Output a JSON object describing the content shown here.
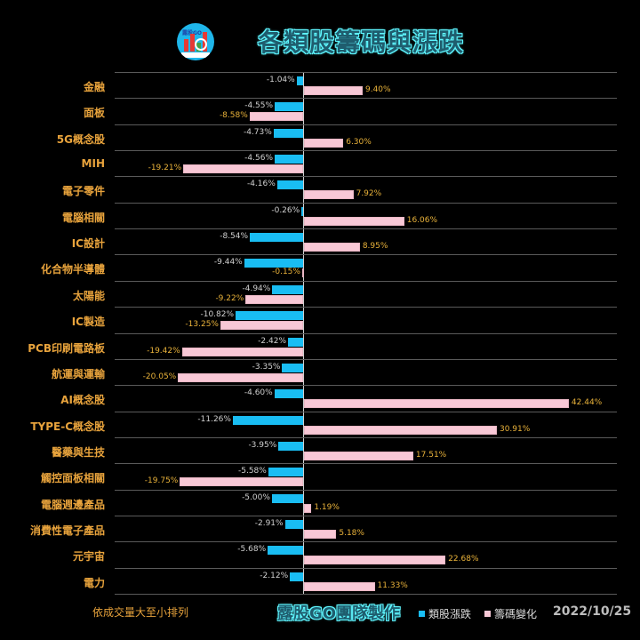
{
  "header": {
    "title": "各類股籌碼與漲跌",
    "logo_text": "露股GO",
    "logo_icon": "bar-chart-magnifier-logo"
  },
  "footer": {
    "note": "依成交量大至小排列",
    "brand": "露股GO團隊製作",
    "date": "2022/10/25"
  },
  "legend": [
    {
      "label": "類股漲跌",
      "color": "#19bdf3"
    },
    {
      "label": "籌碼變化",
      "color": "#f8c8d6"
    }
  ],
  "colors": {
    "background": "#000000",
    "price_bar": "#19bdf3",
    "chip_bar": "#f8c8d6",
    "category_label": "#e8a33c",
    "chip_value_label": "#e9b23a",
    "price_value_label": "#d0d0d0",
    "title_glow": "#5ff6ff"
  },
  "chart_data": {
    "type": "bar",
    "orientation": "horizontal",
    "title": "各類股籌碼與漲跌",
    "xlabel": "",
    "ylabel": "",
    "note": "依成交量大至小排列",
    "date": "2022/10/25",
    "legend_position": "bottom",
    "grid": true,
    "categories": [
      "金融",
      "面板",
      "5G概念股",
      "MIH",
      "電子零件",
      "電腦相關",
      "IC設計",
      "化合物半導體",
      "太陽能",
      "IC製造",
      "PCB印刷電路板",
      "航運與運輸",
      "AI概念股",
      "TYPE-C概念股",
      "醫藥與生技",
      "觸控面板相關",
      "電腦週邊產品",
      "消費性電子產品",
      "元宇宙",
      "電力"
    ],
    "series": [
      {
        "name": "類股漲跌",
        "values": [
          -1.04,
          -4.55,
          -4.73,
          -4.56,
          -4.16,
          -0.26,
          -8.54,
          -9.44,
          -4.94,
          -10.82,
          -2.42,
          -3.35,
          -4.6,
          -11.26,
          -3.95,
          -5.58,
          -5.0,
          -2.91,
          -5.68,
          -2.12
        ],
        "labels": [
          "-1.04%",
          "-4.55%",
          "-4.73%",
          "-4.56%",
          "-4.16%",
          "-0.26%",
          "-8.54%",
          "-9.44%",
          "-4.94%",
          "-10.82%",
          "-2.42%",
          "-3.35%",
          "-4.60%",
          "-11.26%",
          "-3.95%",
          "-5.58%",
          "-5.00%",
          "-2.91%",
          "-5.68%",
          "-2.12%"
        ]
      },
      {
        "name": "籌碼變化",
        "values": [
          9.4,
          -8.58,
          6.3,
          -19.21,
          7.92,
          16.06,
          8.95,
          -0.15,
          -9.22,
          -13.25,
          -19.42,
          -20.05,
          42.44,
          30.91,
          17.51,
          -19.75,
          1.19,
          5.18,
          22.68,
          11.33
        ],
        "labels": [
          "9.40%",
          "-8.58%",
          "6.30%",
          "-19.21%",
          "7.92%",
          "16.06%",
          "8.95%",
          "-0.15%",
          "-9.22%",
          "-13.25%",
          "-19.42%",
          "-20.05%",
          "42.44%",
          "30.91%",
          "17.51%",
          "-19.75%",
          "1.19%",
          "5.18%",
          "22.68%",
          "11.33%"
        ]
      }
    ],
    "xlim": [
      -27,
      50
    ]
  }
}
